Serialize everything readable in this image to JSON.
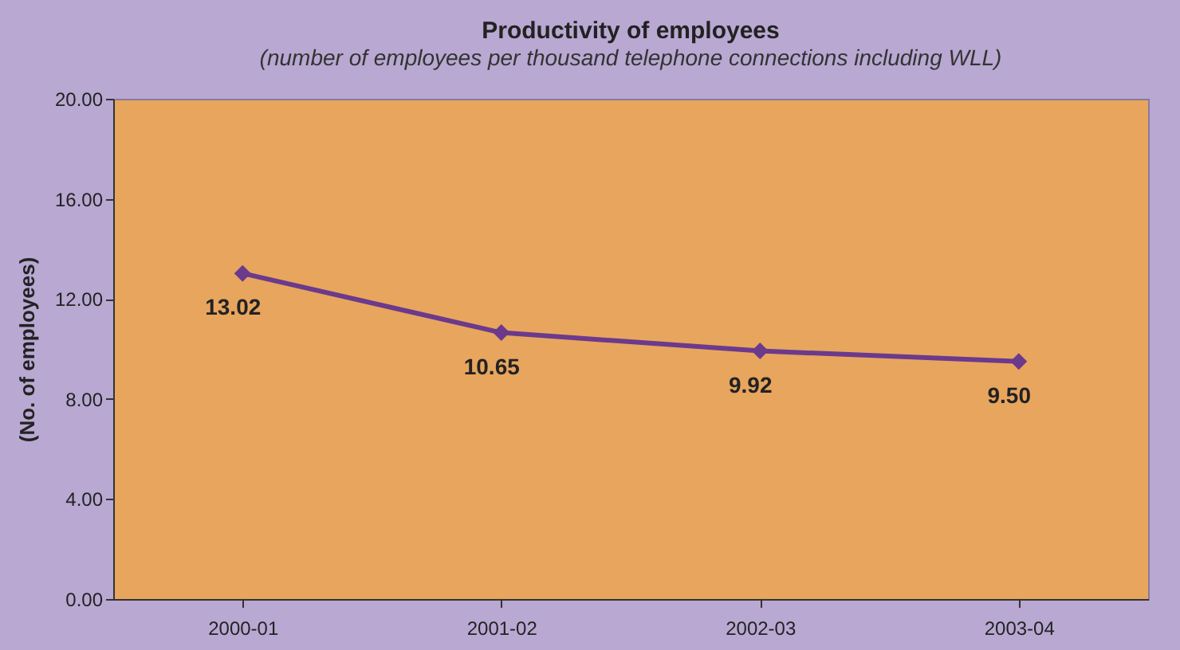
{
  "chart_data": {
    "type": "line",
    "title": "Productivity of employees",
    "subtitle": "(number of employees per thousand telephone connections including WLL)",
    "ylabel": "(No. of employees)",
    "categories": [
      "2000-01",
      "2001-02",
      "2002-03",
      "2003-04"
    ],
    "series": [
      {
        "color": "#6b3a8c",
        "values": [
          13.02,
          10.65,
          9.92,
          9.5
        ]
      }
    ],
    "value_labels": [
      "13.02",
      "10.65",
      "9.92",
      "9.50"
    ],
    "ylim": [
      0,
      20
    ],
    "yticks": [
      {
        "value": 0,
        "label": "0.00"
      },
      {
        "value": 4,
        "label": "4.00"
      },
      {
        "value": 8,
        "label": "8.00"
      },
      {
        "value": 12,
        "label": "12.00"
      },
      {
        "value": 16,
        "label": "16.00"
      },
      {
        "value": 20,
        "label": "20.00"
      }
    ],
    "grid": false,
    "marker": "diamond",
    "line_style": "solid"
  }
}
